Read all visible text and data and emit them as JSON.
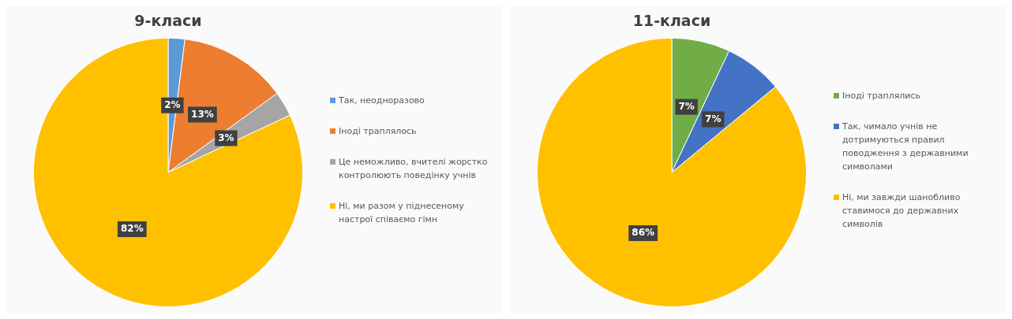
{
  "chart_data": [
    {
      "type": "pie",
      "title": "9-класи",
      "categories": [
        "Так, неодноразово",
        "Іноді траплялось",
        "Це неможливо, вчителі жорстко контролюють поведінку учнів",
        "Ні, ми разом у піднесеному настрої співаємо гімн"
      ],
      "values": [
        2,
        13,
        3,
        82
      ],
      "colors": [
        "#5b9bd5",
        "#ed7d31",
        "#a5a5a5",
        "#ffc000"
      ],
      "value_labels": [
        "2%",
        "13%",
        "3%",
        "82%"
      ],
      "legend": "right"
    },
    {
      "type": "pie",
      "title": "11-класи",
      "categories": [
        "Іноді траплялись",
        "Так, чимало учнів не дотримуються правил поводження з державними символами",
        "Ні, ми завжди шанобливо ставимося до державних символів"
      ],
      "values": [
        7,
        7,
        86
      ],
      "colors": [
        "#70ad47",
        "#4472c4",
        "#ffc000"
      ],
      "value_labels": [
        "7%",
        "7%",
        "86%"
      ],
      "legend": "right"
    }
  ]
}
